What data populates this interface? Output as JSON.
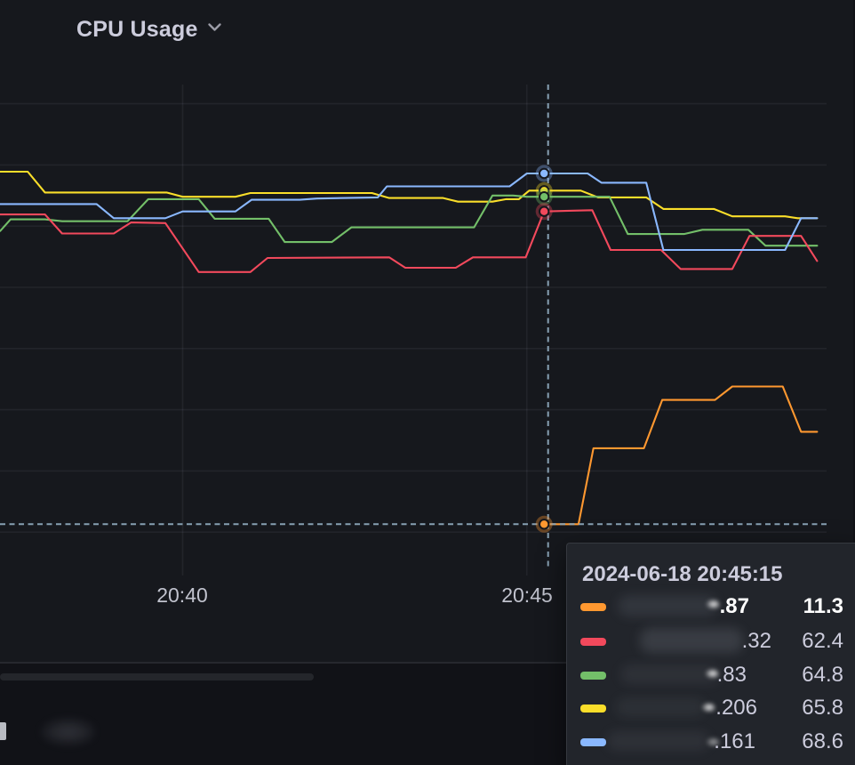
{
  "panel": {
    "title": "CPU Usage",
    "collapse_icon": "chevron-down-icon"
  },
  "x_axis": {
    "tick_labels": [
      "20:40",
      "20:45"
    ]
  },
  "tooltip": {
    "timestamp": "2024-06-18 20:45:15",
    "rows": [
      {
        "series": "orange",
        "color": "#ff9830",
        "label_suffix": ".87",
        "value": "11.3",
        "highlighted": true
      },
      {
        "series": "red",
        "color": "#f2495c",
        "label_suffix": ".32",
        "value": "62.4",
        "highlighted": false
      },
      {
        "series": "green",
        "color": "#73bf69",
        "label_suffix": ".83",
        "value": "64.8",
        "highlighted": false
      },
      {
        "series": "yellow",
        "color": "#fade2a",
        "label_suffix": ".206",
        "value": "65.8",
        "highlighted": false
      },
      {
        "series": "blue",
        "color": "#8ab8ff",
        "label_suffix": ".161",
        "value": "68.6",
        "highlighted": false
      }
    ]
  },
  "colors": {
    "panel_bg": "#16181d",
    "page_bg": "#111217",
    "grid": "rgba(204,204,220,0.07)",
    "axis_text": "#c0c2cd",
    "title_text": "#ccccdc",
    "crosshair": "rgba(141,168,186,0.95)",
    "tooltip_bg": "#22252b"
  },
  "chart_data": {
    "type": "line",
    "title": "CPU Usage",
    "xlabel": "time",
    "ylabel": "",
    "x_unit": "seconds since 2024-06-18 20:40:00",
    "y_unit": "percent",
    "xlim": [
      -159,
      562
    ],
    "ylim": [
      3.5,
      83.5
    ],
    "grid": true,
    "legend_position": "none",
    "y_gridline_values": [
      10,
      20,
      30,
      40,
      50,
      60,
      70,
      80
    ],
    "x_ticks": [
      {
        "t": 0,
        "label": "20:40"
      },
      {
        "t": 300,
        "label": "20:45"
      }
    ],
    "hover": {
      "t": 315,
      "time_label": "2024-06-18 20:45:15",
      "cursor_t": 318.5,
      "cursor_v": 11.3,
      "point_values": {
        "orange": 11.3,
        "red": 62.4,
        "green": 64.8,
        "yellow": 65.8,
        "blue": 68.6
      }
    },
    "series": [
      {
        "name": "yellow",
        "color": "#fade2a",
        "points": [
          [
            -165,
            68.9
          ],
          [
            -135,
            68.9
          ],
          [
            -120,
            65.5
          ],
          [
            -14,
            65.5
          ],
          [
            0,
            64.8
          ],
          [
            46,
            64.8
          ],
          [
            59,
            65.4
          ],
          [
            165,
            65.4
          ],
          [
            180,
            64.6
          ],
          [
            227,
            64.6
          ],
          [
            240,
            64.0
          ],
          [
            270,
            64.0
          ],
          [
            282,
            64.4
          ],
          [
            293,
            64.4
          ],
          [
            302,
            65.8
          ],
          [
            347,
            65.8
          ],
          [
            362,
            64.7
          ],
          [
            404,
            64.7
          ],
          [
            419,
            62.8
          ],
          [
            463,
            62.8
          ],
          [
            479,
            61.6
          ],
          [
            525,
            61.6
          ],
          [
            536,
            61.3
          ],
          [
            553,
            61.3
          ]
        ]
      },
      {
        "name": "green",
        "color": "#73bf69",
        "points": [
          [
            -159,
            59.2
          ],
          [
            -150,
            61.1
          ],
          [
            -120,
            61.1
          ],
          [
            -105,
            60.8
          ],
          [
            -48,
            60.8
          ],
          [
            -30,
            64.4
          ],
          [
            14,
            64.4
          ],
          [
            28,
            61.2
          ],
          [
            75,
            61.2
          ],
          [
            89,
            57.4
          ],
          [
            130,
            57.4
          ],
          [
            147,
            59.8
          ],
          [
            254,
            59.8
          ],
          [
            270,
            65.0
          ],
          [
            288,
            65.0
          ],
          [
            300,
            64.8
          ],
          [
            372,
            64.8
          ],
          [
            388,
            58.7
          ],
          [
            437,
            58.7
          ],
          [
            453,
            59.4
          ],
          [
            493,
            59.4
          ],
          [
            508,
            56.8
          ],
          [
            553,
            56.8
          ]
        ]
      },
      {
        "name": "red",
        "color": "#f2495c",
        "points": [
          [
            -165,
            61.9
          ],
          [
            -120,
            61.9
          ],
          [
            -105,
            58.8
          ],
          [
            -60,
            58.8
          ],
          [
            -45,
            60.6
          ],
          [
            -15,
            60.5
          ],
          [
            14,
            52.5
          ],
          [
            59,
            52.5
          ],
          [
            74,
            54.8
          ],
          [
            180,
            54.9
          ],
          [
            194,
            53.2
          ],
          [
            238,
            53.2
          ],
          [
            253,
            54.9
          ],
          [
            299,
            54.9
          ],
          [
            315,
            62.4
          ],
          [
            357,
            62.6
          ],
          [
            373,
            56.1
          ],
          [
            417,
            56.1
          ],
          [
            434,
            53.0
          ],
          [
            479,
            53.0
          ],
          [
            494,
            58.4
          ],
          [
            539,
            58.4
          ],
          [
            553,
            54.3
          ]
        ]
      },
      {
        "name": "blue",
        "color": "#8ab8ff",
        "points": [
          [
            -165,
            63.6
          ],
          [
            -75,
            63.6
          ],
          [
            -60,
            61.3
          ],
          [
            -15,
            61.3
          ],
          [
            0,
            62.4
          ],
          [
            46,
            62.4
          ],
          [
            60,
            64.3
          ],
          [
            102,
            64.3
          ],
          [
            117,
            64.5
          ],
          [
            170,
            64.7
          ],
          [
            178,
            66.5
          ],
          [
            285,
            66.5
          ],
          [
            300,
            68.6
          ],
          [
            353,
            68.6
          ],
          [
            365,
            67.1
          ],
          [
            404,
            67.1
          ],
          [
            419,
            56.1
          ],
          [
            525,
            56.1
          ],
          [
            539,
            61.3
          ],
          [
            553,
            61.3
          ]
        ]
      },
      {
        "name": "orange",
        "color": "#ff9830",
        "points": [
          [
            315,
            11.3
          ],
          [
            345,
            11.3
          ],
          [
            358,
            23.7
          ],
          [
            402,
            23.7
          ],
          [
            418,
            31.6
          ],
          [
            464,
            31.6
          ],
          [
            479,
            33.8
          ],
          [
            523,
            33.8
          ],
          [
            539,
            26.4
          ],
          [
            553,
            26.4
          ]
        ]
      }
    ]
  }
}
